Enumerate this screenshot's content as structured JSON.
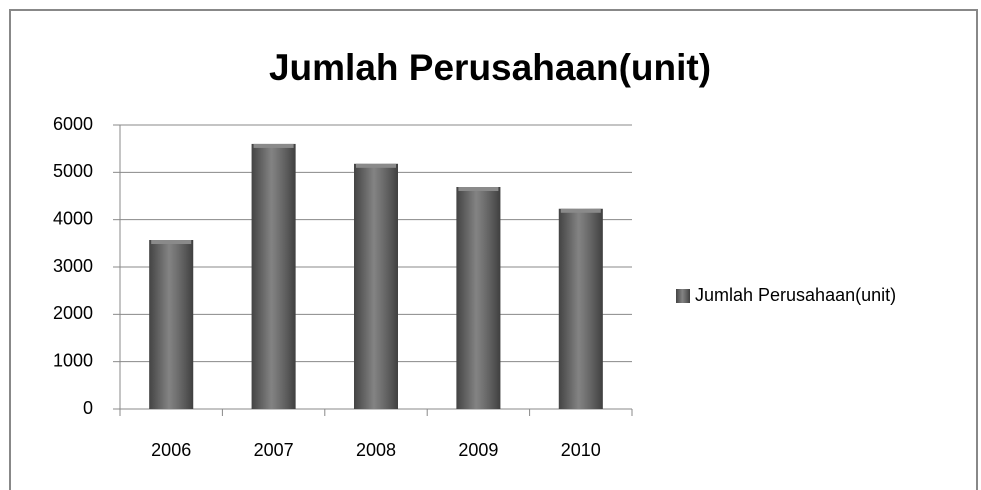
{
  "chart_data": {
    "type": "bar",
    "title": "Jumlah Perusahaan(unit)",
    "categories": [
      "2006",
      "2007",
      "2008",
      "2009",
      "2010"
    ],
    "series": [
      {
        "name": "Jumlah Perusahaan(unit)",
        "color": "#5a5a5a",
        "values": [
          3570,
          5600,
          5180,
          4690,
          4230
        ]
      }
    ],
    "ylim": [
      0,
      6000
    ],
    "yticks": [
      0,
      1000,
      2000,
      3000,
      4000,
      5000,
      6000
    ],
    "grid": true,
    "legend": "right"
  }
}
